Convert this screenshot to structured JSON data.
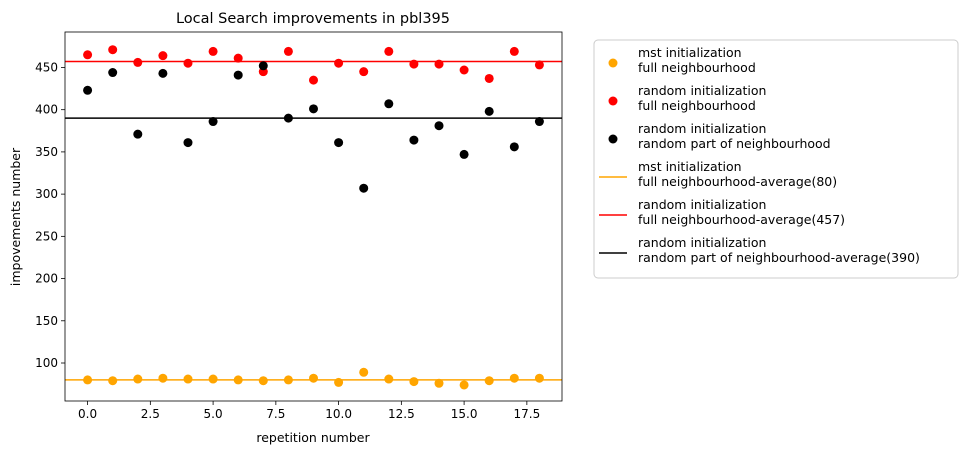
{
  "chart_data": {
    "type": "scatter",
    "title": "Local Search improvements in pbl395",
    "xlabel": "repetition number",
    "ylabel": "impovements number",
    "xlim": [
      -0.9,
      18.9
    ],
    "ylim": [
      55,
      492
    ],
    "xticks": [
      0.0,
      2.5,
      5.0,
      7.5,
      10.0,
      12.5,
      15.0,
      17.5
    ],
    "xtick_labels": [
      "0.0",
      "2.5",
      "5.0",
      "7.5",
      "10.0",
      "12.5",
      "15.0",
      "17.5"
    ],
    "yticks": [
      100,
      150,
      200,
      250,
      300,
      350,
      400,
      450
    ],
    "ytick_labels": [
      "100",
      "150",
      "200",
      "250",
      "300",
      "350",
      "400",
      "450"
    ],
    "grid": false,
    "legend_position": "outside-right",
    "x": [
      0,
      1,
      2,
      3,
      4,
      5,
      6,
      7,
      8,
      9,
      10,
      11,
      12,
      13,
      14,
      15,
      16,
      17,
      18
    ],
    "series": [
      {
        "kind": "points",
        "label_lines": [
          "mst initialization",
          "full neighbourhood"
        ],
        "color": "#FFA500",
        "values": [
          80,
          79,
          81,
          82,
          81,
          81,
          80,
          79,
          80,
          82,
          77,
          89,
          81,
          78,
          76,
          74,
          79,
          82,
          82
        ]
      },
      {
        "kind": "points",
        "label_lines": [
          "random initialization",
          "full neighbourhood"
        ],
        "color": "#FF0000",
        "values": [
          465,
          471,
          456,
          464,
          455,
          469,
          461,
          445,
          469,
          435,
          455,
          445,
          469,
          454,
          454,
          447,
          437,
          469,
          453
        ]
      },
      {
        "kind": "points",
        "label_lines": [
          "random initialization",
          "random part of neighbourhood"
        ],
        "color": "#000000",
        "values": [
          423,
          444,
          371,
          443,
          361,
          386,
          441,
          452,
          390,
          401,
          361,
          307,
          407,
          364,
          381,
          347,
          398,
          356,
          386
        ]
      },
      {
        "kind": "hline",
        "label_lines": [
          "mst initialization",
          "full neighbourhood-average(80)"
        ],
        "color": "#FFA500",
        "value": 80
      },
      {
        "kind": "hline",
        "label_lines": [
          "random initialization",
          "full neighbourhood-average(457)"
        ],
        "color": "#FF0000",
        "value": 457
      },
      {
        "kind": "hline",
        "label_lines": [
          "random initialization",
          "random part of neighbourhood-average(390)"
        ],
        "color": "#000000",
        "value": 390
      }
    ]
  }
}
